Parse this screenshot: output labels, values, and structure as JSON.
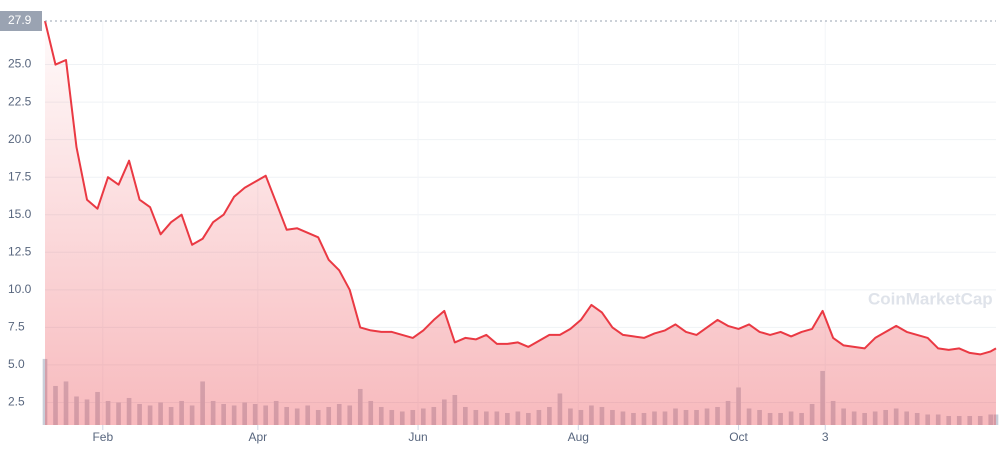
{
  "chart_data": {
    "type": "line",
    "color": "#ea3943",
    "volume_color": "#c9ced9",
    "highlight": 27.9,
    "watermark": "CoinMarketCap",
    "x": [
      10,
      14,
      18,
      22,
      26,
      30,
      34,
      38,
      42,
      46,
      50,
      54,
      58,
      62,
      66,
      70,
      74,
      78,
      82,
      86,
      90,
      94,
      98,
      102,
      106,
      110,
      114,
      118,
      122,
      126,
      130,
      134,
      138,
      142,
      146,
      150,
      154,
      158,
      162,
      166,
      170,
      174,
      178,
      182,
      186,
      190,
      194,
      198,
      202,
      206,
      210,
      214,
      218,
      222,
      226,
      230,
      234,
      238,
      242,
      246,
      250,
      254,
      258,
      262,
      266,
      270,
      274,
      278,
      282,
      286,
      290,
      294,
      298,
      302,
      306,
      310,
      314,
      318,
      322,
      326,
      330,
      334,
      338,
      342,
      346,
      350,
      354,
      358,
      362,
      366,
      370,
      372
    ],
    "values": [
      27.9,
      25.0,
      25.3,
      19.5,
      16.0,
      15.4,
      17.5,
      17.0,
      18.6,
      16.0,
      15.5,
      13.7,
      14.5,
      15.0,
      13.0,
      13.4,
      14.5,
      15.0,
      16.2,
      16.8,
      17.2,
      17.6,
      15.8,
      14.0,
      14.1,
      13.8,
      13.5,
      12.0,
      11.3,
      10.0,
      7.5,
      7.3,
      7.2,
      7.2,
      7.0,
      6.8,
      7.3,
      8.0,
      8.6,
      6.5,
      6.8,
      6.7,
      7.0,
      6.4,
      6.4,
      6.5,
      6.2,
      6.6,
      7.0,
      7.0,
      7.4,
      8.0,
      9.0,
      8.5,
      7.5,
      7.0,
      6.9,
      6.8,
      7.1,
      7.3,
      7.7,
      7.2,
      7.0,
      7.5,
      8.0,
      7.6,
      7.4,
      7.7,
      7.2,
      7.0,
      7.2,
      6.9,
      7.2,
      7.4,
      8.6,
      6.8,
      6.3,
      6.2,
      6.1,
      6.8,
      7.2,
      7.6,
      7.2,
      7.0,
      6.8,
      6.1,
      6.0,
      6.1,
      5.8,
      5.7,
      5.9,
      6.1
    ],
    "volume": [
      5.4,
      3.6,
      3.9,
      2.9,
      2.7,
      3.2,
      2.6,
      2.5,
      2.8,
      2.4,
      2.3,
      2.5,
      2.2,
      2.6,
      2.3,
      3.9,
      2.6,
      2.4,
      2.3,
      2.5,
      2.4,
      2.3,
      2.6,
      2.2,
      2.1,
      2.3,
      2.0,
      2.2,
      2.4,
      2.3,
      3.4,
      2.6,
      2.2,
      2.0,
      1.9,
      2.0,
      2.1,
      2.2,
      2.7,
      3.0,
      2.2,
      2.0,
      1.9,
      1.9,
      1.8,
      1.9,
      1.8,
      2.0,
      2.2,
      3.1,
      2.1,
      2.0,
      2.3,
      2.2,
      2.0,
      1.9,
      1.8,
      1.8,
      1.9,
      1.9,
      2.1,
      2.0,
      2.0,
      2.1,
      2.2,
      2.6,
      3.5,
      2.1,
      2.0,
      1.8,
      1.8,
      1.9,
      1.8,
      2.4,
      4.6,
      2.6,
      2.1,
      1.9,
      1.8,
      1.9,
      2.0,
      2.1,
      1.9,
      1.8,
      1.7,
      1.7,
      1.6,
      1.6,
      1.6,
      1.6,
      1.7,
      1.7
    ],
    "xlim": [
      10,
      372
    ],
    "xticks": [
      {
        "value": 32,
        "label": "Feb"
      },
      {
        "value": 91,
        "label": "Apr"
      },
      {
        "value": 152,
        "label": "Jun"
      },
      {
        "value": 213,
        "label": "Aug"
      },
      {
        "value": 274,
        "label": "Oct"
      },
      {
        "value": 307,
        "label": "3"
      }
    ],
    "ylim": [
      1,
      27.9
    ],
    "yticks": [
      2.5,
      {
        "value": 5,
        "label": "5.0"
      },
      7.5,
      {
        "value": 10,
        "label": "10.0"
      },
      12.5,
      {
        "value": 15,
        "label": "15.0"
      },
      17.5,
      {
        "value": 20,
        "label": "20.0"
      },
      22.5,
      {
        "value": 25,
        "label": "25.0"
      }
    ],
    "grid": true
  }
}
